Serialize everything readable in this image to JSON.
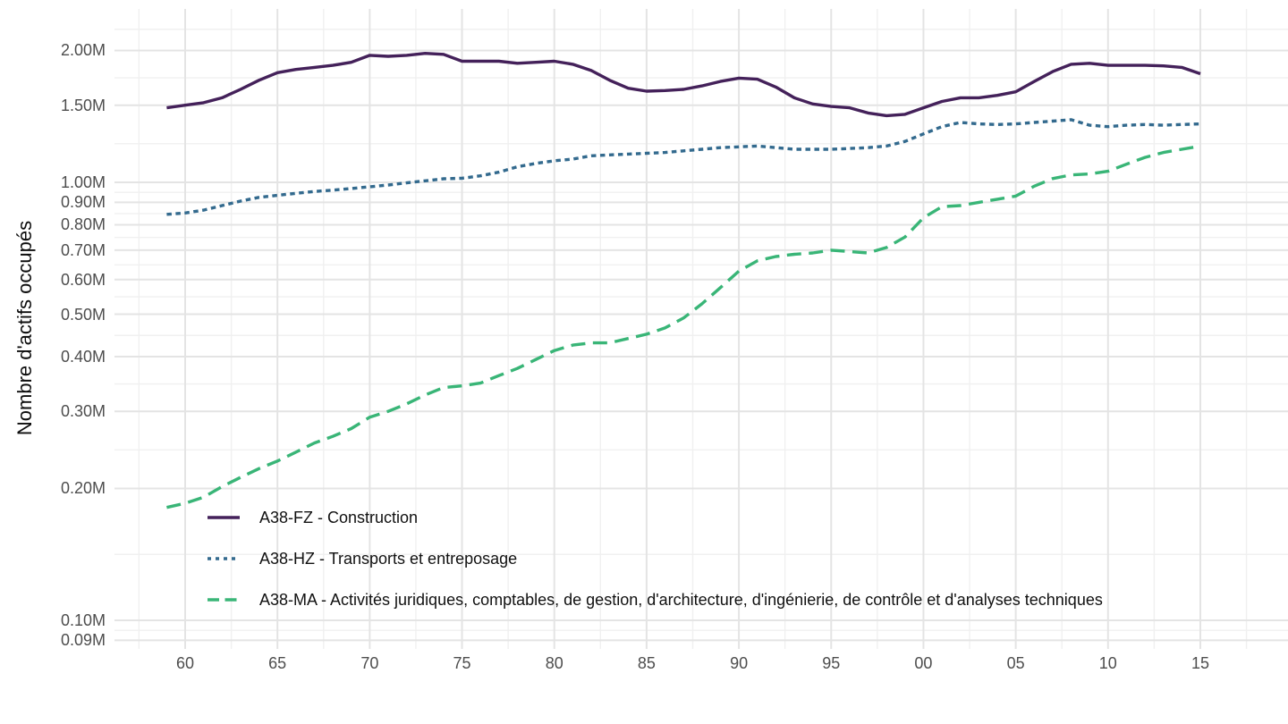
{
  "chart_data": {
    "type": "line",
    "title": "",
    "xlabel": "",
    "ylabel": "Nombre d'actifs occupés",
    "y_scale": "log10",
    "y_unit": "millions",
    "grid": {
      "major_color": "#e4e4e4",
      "minor_color": "#f0f0f0",
      "background": "#ffffff"
    },
    "legend_position": "inside-bottom-left",
    "years": [
      1959,
      1960,
      1961,
      1962,
      1963,
      1964,
      1965,
      1966,
      1967,
      1968,
      1969,
      1970,
      1971,
      1972,
      1973,
      1974,
      1975,
      1976,
      1977,
      1978,
      1979,
      1980,
      1981,
      1982,
      1983,
      1984,
      1985,
      1986,
      1987,
      1988,
      1989,
      1990,
      1991,
      1992,
      1993,
      1994,
      1995,
      1996,
      1997,
      1998,
      1999,
      2000,
      2001,
      2002,
      2003,
      2004,
      2005,
      2006,
      2007,
      2008,
      2009,
      2010,
      2011,
      2012,
      2013,
      2014,
      2015
    ],
    "series": [
      {
        "name": "A38-FZ - Construction",
        "color": "#44215a",
        "line_style": "solid",
        "values": [
          1.48,
          1.5,
          1.52,
          1.56,
          1.63,
          1.71,
          1.78,
          1.81,
          1.83,
          1.85,
          1.88,
          1.95,
          1.94,
          1.95,
          1.97,
          1.96,
          1.89,
          1.89,
          1.89,
          1.87,
          1.88,
          1.89,
          1.86,
          1.8,
          1.71,
          1.64,
          1.615,
          1.62,
          1.63,
          1.66,
          1.7,
          1.73,
          1.72,
          1.65,
          1.56,
          1.51,
          1.49,
          1.48,
          1.44,
          1.42,
          1.43,
          1.48,
          1.53,
          1.56,
          1.56,
          1.58,
          1.61,
          1.7,
          1.79,
          1.86,
          1.87,
          1.85,
          1.85,
          1.85,
          1.845,
          1.83,
          1.77
        ]
      },
      {
        "name": "A38-HZ - Transports et entreposage",
        "color": "#336a8e",
        "line_style": "dotted",
        "values": [
          0.845,
          0.851,
          0.864,
          0.885,
          0.906,
          0.924,
          0.934,
          0.944,
          0.953,
          0.96,
          0.968,
          0.977,
          0.986,
          0.997,
          1.008,
          1.019,
          1.022,
          1.035,
          1.055,
          1.085,
          1.105,
          1.12,
          1.13,
          1.15,
          1.155,
          1.16,
          1.165,
          1.17,
          1.18,
          1.19,
          1.2,
          1.205,
          1.21,
          1.2,
          1.19,
          1.19,
          1.19,
          1.195,
          1.2,
          1.21,
          1.24,
          1.29,
          1.34,
          1.37,
          1.36,
          1.355,
          1.36,
          1.37,
          1.38,
          1.39,
          1.35,
          1.34,
          1.35,
          1.355,
          1.35,
          1.355,
          1.36
        ]
      },
      {
        "name": "A38-MA - Activités juridiques, comptables, de gestion, d'architecture, d'ingénierie, de contrôle et d'analyses techniques",
        "color": "#39b577",
        "line_style": "dashed",
        "values": [
          0.181,
          0.185,
          0.191,
          0.202,
          0.212,
          0.222,
          0.231,
          0.242,
          0.254,
          0.263,
          0.274,
          0.291,
          0.3,
          0.312,
          0.327,
          0.34,
          0.343,
          0.348,
          0.362,
          0.376,
          0.394,
          0.413,
          0.425,
          0.43,
          0.43,
          0.44,
          0.45,
          0.465,
          0.49,
          0.528,
          0.575,
          0.627,
          0.662,
          0.677,
          0.685,
          0.69,
          0.7,
          0.695,
          0.69,
          0.71,
          0.75,
          0.83,
          0.88,
          0.885,
          0.9,
          0.915,
          0.93,
          0.98,
          1.02,
          1.04,
          1.045,
          1.06,
          1.1,
          1.14,
          1.17,
          1.19,
          1.21
        ]
      }
    ],
    "y_ticks": [
      {
        "label": "2.00M",
        "value": 2.0
      },
      {
        "label": "1.50M",
        "value": 1.5
      },
      {
        "label": "1.00M",
        "value": 1.0
      },
      {
        "label": "0.90M",
        "value": 0.9
      },
      {
        "label": "0.80M",
        "value": 0.8
      },
      {
        "label": "0.70M",
        "value": 0.7
      },
      {
        "label": "0.60M",
        "value": 0.6
      },
      {
        "label": "0.50M",
        "value": 0.5
      },
      {
        "label": "0.40M",
        "value": 0.4
      },
      {
        "label": "0.30M",
        "value": 0.3
      },
      {
        "label": "0.20M",
        "value": 0.2
      },
      {
        "label": "0.10M",
        "value": 0.1
      },
      {
        "label": "0.09M",
        "value": 0.09
      }
    ],
    "x_ticks": [
      {
        "label": "60",
        "year": 1960
      },
      {
        "label": "65",
        "year": 1965
      },
      {
        "label": "70",
        "year": 1970
      },
      {
        "label": "75",
        "year": 1975
      },
      {
        "label": "80",
        "year": 1980
      },
      {
        "label": "85",
        "year": 1985
      },
      {
        "label": "90",
        "year": 1990
      },
      {
        "label": "95",
        "year": 1995
      },
      {
        "label": "00",
        "year": 2000
      },
      {
        "label": "05",
        "year": 2005
      },
      {
        "label": "10",
        "year": 2010
      },
      {
        "label": "15",
        "year": 2015
      }
    ]
  }
}
